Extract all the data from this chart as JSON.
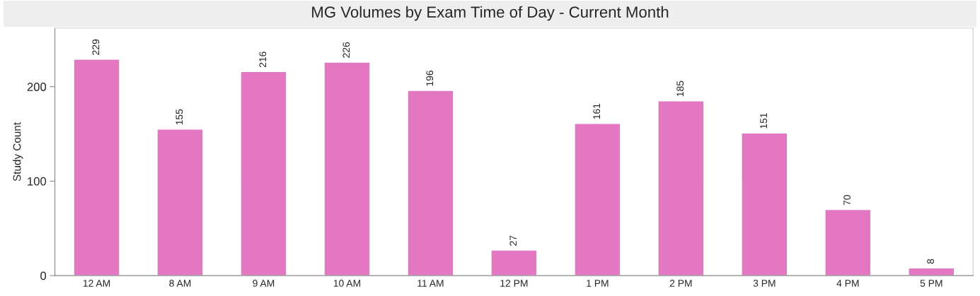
{
  "chart_data": {
    "type": "bar",
    "title": "MG Volumes by Exam Time of Day - Current Month",
    "ylabel": "Study Count",
    "categories": [
      "12 AM",
      "8 AM",
      "9 AM",
      "10 AM",
      "11 AM",
      "12 PM",
      "1 PM",
      "2 PM",
      "3 PM",
      "4 PM",
      "5 PM"
    ],
    "values": [
      229,
      155,
      216,
      226,
      196,
      27,
      161,
      185,
      151,
      70,
      8
    ],
    "color": "#e377c2",
    "ylim": [
      0,
      262
    ],
    "yticks": [
      0,
      100,
      200
    ],
    "grid": false,
    "legend": false,
    "data_labels": true
  }
}
